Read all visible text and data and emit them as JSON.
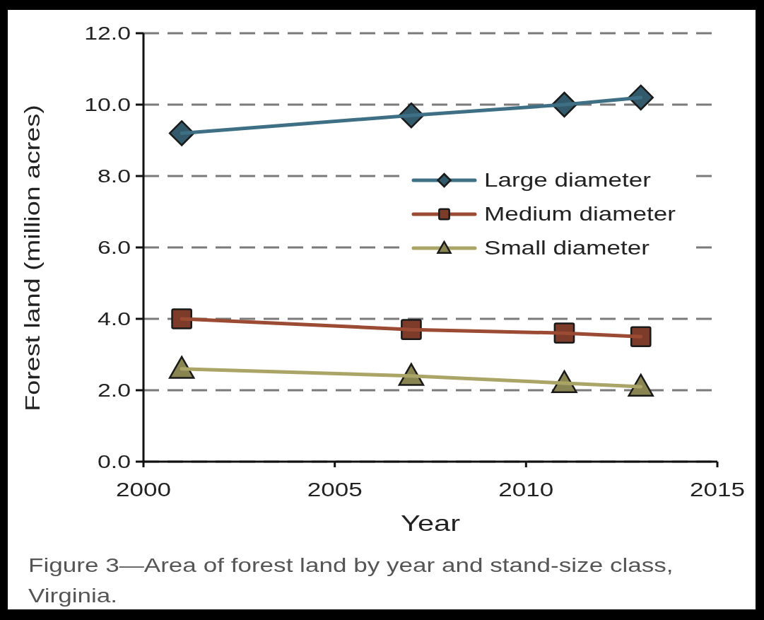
{
  "chart_data": {
    "type": "line",
    "xlabel": "Year",
    "ylabel": "Forest land (million acres)",
    "x": [
      2001,
      2007,
      2011,
      2013
    ],
    "xlim": [
      2000,
      2015
    ],
    "xticks": [
      2000,
      2005,
      2010,
      2015
    ],
    "ylim": [
      0,
      12
    ],
    "yticks": [
      {
        "value": 0,
        "label": "0.0"
      },
      {
        "value": 2,
        "label": "2.0"
      },
      {
        "value": 4,
        "label": "4.0"
      },
      {
        "value": 6,
        "label": "6.0"
      },
      {
        "value": 8,
        "label": "8.0"
      },
      {
        "value": 10,
        "label": "10.0"
      },
      {
        "value": 12,
        "label": "12.0"
      }
    ],
    "grid": "y",
    "legend": "right",
    "line_style": "solid",
    "series": [
      {
        "name": "Large diameter",
        "color": "#3e6f84",
        "marker": "diamond",
        "values": [
          9.2,
          9.7,
          10.0,
          10.2
        ]
      },
      {
        "name": "Medium diameter",
        "color": "#9b4a33",
        "marker": "square",
        "values": [
          4.0,
          3.7,
          3.6,
          3.5
        ]
      },
      {
        "name": "Small diameter",
        "color": "#aaa566",
        "marker": "triangle",
        "values": [
          2.6,
          2.4,
          2.2,
          2.1
        ]
      }
    ],
    "annotations": [
      "Figure 3—Area of forest land by year and stand-size class, Virginia."
    ]
  }
}
